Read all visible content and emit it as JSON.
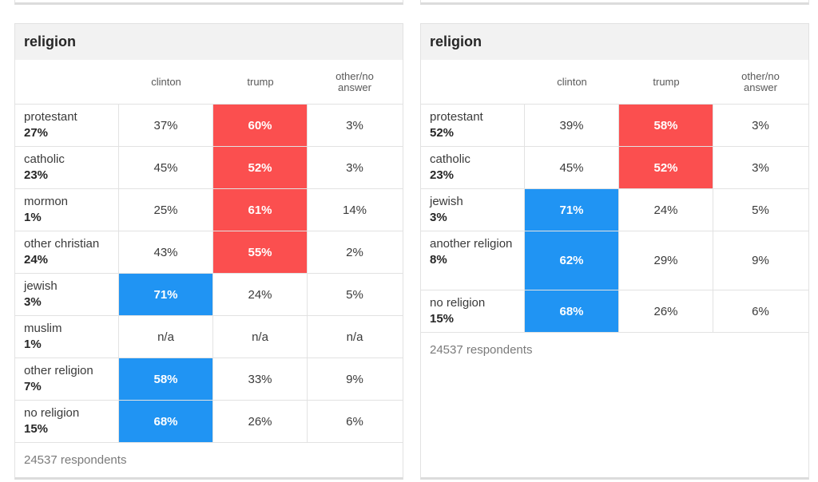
{
  "colors": {
    "trump_win": "#fb4f4f",
    "clinton_win": "#2094f3"
  },
  "left": {
    "title": "religion",
    "columns": [
      "clinton",
      "trump",
      "other/no\nanswer"
    ],
    "rows": [
      {
        "name": "protestant",
        "pct": "27%",
        "values": [
          "37%",
          "60%",
          "3%"
        ],
        "winner": 1
      },
      {
        "name": "catholic",
        "pct": "23%",
        "values": [
          "45%",
          "52%",
          "3%"
        ],
        "winner": 1
      },
      {
        "name": "mormon",
        "pct": "1%",
        "values": [
          "25%",
          "61%",
          "14%"
        ],
        "winner": 1
      },
      {
        "name": "other christian",
        "pct": "24%",
        "values": [
          "43%",
          "55%",
          "2%"
        ],
        "winner": 1
      },
      {
        "name": "jewish",
        "pct": "3%",
        "values": [
          "71%",
          "24%",
          "5%"
        ],
        "winner": 0
      },
      {
        "name": "muslim",
        "pct": "1%",
        "values": [
          "n/a",
          "n/a",
          "n/a"
        ],
        "winner": -1
      },
      {
        "name": "other religion",
        "pct": "7%",
        "values": [
          "58%",
          "33%",
          "9%"
        ],
        "winner": 0
      },
      {
        "name": "no religion",
        "pct": "15%",
        "values": [
          "68%",
          "26%",
          "6%"
        ],
        "winner": 0
      }
    ],
    "footer": "24537 respondents"
  },
  "right": {
    "title": "religion",
    "columns": [
      "clinton",
      "trump",
      "other/no\nanswer"
    ],
    "rows": [
      {
        "name": "protestant",
        "pct": "52%",
        "values": [
          "39%",
          "58%",
          "3%"
        ],
        "winner": 1
      },
      {
        "name": "catholic",
        "pct": "23%",
        "values": [
          "45%",
          "52%",
          "3%"
        ],
        "winner": 1
      },
      {
        "name": "jewish",
        "pct": "3%",
        "values": [
          "71%",
          "24%",
          "5%"
        ],
        "winner": 0
      },
      {
        "name": "another religion",
        "pct": "8%",
        "values": [
          "62%",
          "29%",
          "9%"
        ],
        "winner": 0
      },
      {
        "name": "no religion",
        "pct": "15%",
        "values": [
          "68%",
          "26%",
          "6%"
        ],
        "winner": 0
      }
    ],
    "footer": "24537 respondents"
  }
}
